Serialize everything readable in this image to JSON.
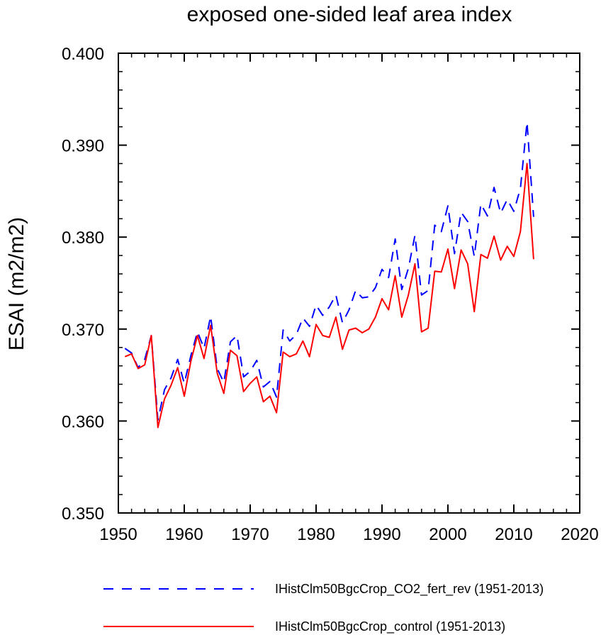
{
  "chart_data": {
    "type": "line",
    "title": "exposed one-sided leaf area index",
    "xlabel": "",
    "ylabel": "ESAI  (m2/m2)",
    "xlim": [
      1950,
      2020
    ],
    "ylim": [
      0.35,
      0.4
    ],
    "xticks": [
      1950,
      1960,
      1970,
      1980,
      1990,
      2000,
      2010,
      2020
    ],
    "xtick_labels": [
      "1950",
      "1960",
      "1970",
      "1980",
      "1990",
      "2000",
      "2010",
      "2020"
    ],
    "yticks": [
      0.35,
      0.36,
      0.37,
      0.38,
      0.39,
      0.4
    ],
    "ytick_labels": [
      "0.350",
      "0.360",
      "0.370",
      "0.380",
      "0.390",
      "0.400"
    ],
    "grid": false,
    "legend_position": "bottom",
    "x": [
      1951,
      1952,
      1953,
      1954,
      1955,
      1956,
      1957,
      1958,
      1959,
      1960,
      1961,
      1962,
      1963,
      1964,
      1965,
      1966,
      1967,
      1968,
      1969,
      1970,
      1971,
      1972,
      1973,
      1974,
      1975,
      1976,
      1977,
      1978,
      1979,
      1980,
      1981,
      1982,
      1983,
      1984,
      1985,
      1986,
      1987,
      1988,
      1989,
      1990,
      1991,
      1992,
      1993,
      1994,
      1995,
      1996,
      1997,
      1998,
      1999,
      2000,
      2001,
      2002,
      2003,
      2004,
      2005,
      2006,
      2007,
      2008,
      2009,
      2010,
      2011,
      2012,
      2013
    ],
    "series": [
      {
        "name": "IHistClm50BgcCrop_CO2_fert_rev (1951-2013)",
        "color": "#0000ff",
        "dash": "dashed",
        "values": [
          0.3679,
          0.3674,
          0.3658,
          0.3667,
          0.3693,
          0.3601,
          0.3634,
          0.3647,
          0.3667,
          0.3641,
          0.3671,
          0.3697,
          0.3679,
          0.3714,
          0.3657,
          0.3642,
          0.3686,
          0.3693,
          0.3648,
          0.3654,
          0.3666,
          0.3637,
          0.3643,
          0.3626,
          0.3699,
          0.3687,
          0.3694,
          0.3712,
          0.3703,
          0.3726,
          0.3715,
          0.3724,
          0.3737,
          0.3707,
          0.3721,
          0.3742,
          0.3734,
          0.3735,
          0.3745,
          0.3765,
          0.3756,
          0.3798,
          0.3743,
          0.3766,
          0.3802,
          0.3737,
          0.3742,
          0.3813,
          0.3806,
          0.3834,
          0.3782,
          0.3827,
          0.3817,
          0.3779,
          0.3836,
          0.3823,
          0.3854,
          0.3826,
          0.3841,
          0.3828,
          0.3853,
          0.3925,
          0.3822
        ]
      },
      {
        "name": "IHistClm50BgcCrop_control (1951-2013)",
        "color": "#ff0000",
        "dash": "solid",
        "values": [
          0.367,
          0.3673,
          0.3657,
          0.3661,
          0.3693,
          0.3593,
          0.3624,
          0.3639,
          0.3658,
          0.3627,
          0.3665,
          0.3693,
          0.3668,
          0.3704,
          0.3652,
          0.363,
          0.3677,
          0.3671,
          0.3632,
          0.3641,
          0.3648,
          0.3621,
          0.3627,
          0.3609,
          0.3675,
          0.367,
          0.3673,
          0.3687,
          0.367,
          0.3705,
          0.3693,
          0.3691,
          0.3713,
          0.3678,
          0.3699,
          0.3701,
          0.3696,
          0.37,
          0.3713,
          0.3733,
          0.3721,
          0.3758,
          0.3713,
          0.3737,
          0.3771,
          0.3697,
          0.3701,
          0.3763,
          0.3762,
          0.3787,
          0.3744,
          0.3786,
          0.3771,
          0.3719,
          0.3781,
          0.3777,
          0.3801,
          0.3775,
          0.379,
          0.3779,
          0.3806,
          0.388,
          0.3776
        ]
      }
    ]
  }
}
